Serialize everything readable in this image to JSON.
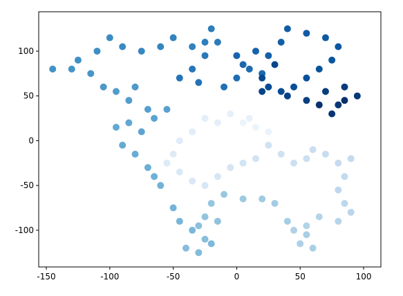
{
  "chart_data": {
    "type": "scatter",
    "colormap": "Blues",
    "x": [
      5,
      15,
      25,
      10,
      -5,
      -15,
      -25,
      -35,
      -45,
      -50,
      -55,
      -45,
      -35,
      -25,
      -15,
      -5,
      5,
      15,
      25,
      35,
      45,
      55,
      60,
      70,
      80,
      90,
      85,
      80,
      85,
      90,
      80,
      65,
      55,
      45,
      50,
      60,
      55,
      40,
      30,
      20,
      5,
      -10,
      -20,
      -25,
      -15,
      -30,
      -25,
      -40,
      -30,
      -20,
      -35,
      -45,
      -50,
      -60,
      -65,
      -70,
      -80,
      -90,
      -95,
      -85,
      -75,
      -65,
      -55,
      -70,
      -85,
      -95,
      -80,
      -105,
      -115,
      -130,
      -145,
      -125,
      -110,
      -100,
      -90,
      -75,
      -60,
      -50,
      -35,
      -25,
      -20,
      -15,
      -25,
      -35,
      -45,
      -30,
      -10,
      0,
      10,
      20,
      5,
      0,
      15,
      25,
      35,
      40,
      55,
      70,
      80,
      75,
      65,
      55,
      45,
      35,
      25,
      20,
      30,
      20,
      40,
      55,
      70,
      85,
      95,
      80,
      75,
      65,
      85
    ],
    "y": [
      20,
      15,
      10,
      25,
      30,
      20,
      25,
      10,
      0,
      -15,
      -25,
      -35,
      -45,
      -50,
      -40,
      -30,
      -25,
      -20,
      -5,
      -15,
      -25,
      -20,
      -10,
      -15,
      -25,
      -20,
      -40,
      -55,
      -70,
      -80,
      -90,
      -85,
      -95,
      -100,
      -115,
      -120,
      -105,
      -90,
      -70,
      -65,
      -65,
      -60,
      -70,
      -85,
      -90,
      -95,
      -110,
      -120,
      -125,
      -115,
      -100,
      -90,
      -75,
      -50,
      -40,
      -30,
      -15,
      -5,
      15,
      20,
      10,
      25,
      35,
      35,
      45,
      55,
      60,
      60,
      75,
      80,
      80,
      90,
      100,
      115,
      105,
      100,
      105,
      115,
      105,
      110,
      125,
      110,
      95,
      80,
      70,
      65,
      60,
      70,
      80,
      75,
      85,
      95,
      100,
      95,
      110,
      125,
      120,
      115,
      105,
      90,
      80,
      70,
      60,
      55,
      60,
      70,
      85,
      55,
      50,
      45,
      55,
      60,
      50,
      40,
      30,
      40,
      45
    ],
    "xlim": [
      -156,
      113.6
    ],
    "ylim": [
      -141,
      144
    ],
    "xticks": [
      -150,
      -100,
      -50,
      0,
      50,
      100
    ],
    "yticks": [
      -100,
      -50,
      0,
      50,
      100
    ]
  }
}
